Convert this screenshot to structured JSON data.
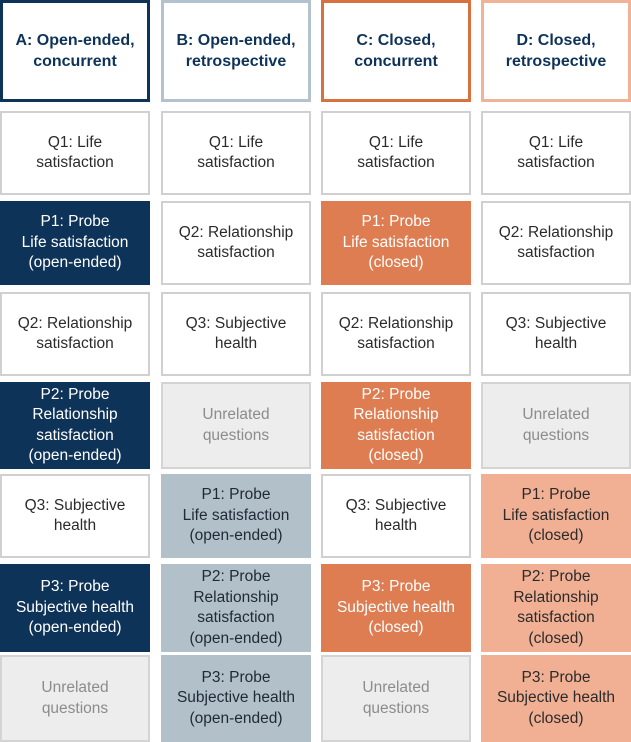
{
  "columns": [
    {
      "key": "a",
      "header": "A: Open-ended,\nconcurrent",
      "cells": [
        {
          "kind": "question",
          "text": "Q1: Life\nsatisfaction"
        },
        {
          "kind": "probe",
          "text": "P1: Probe\nLife satisfaction\n(open-ended)"
        },
        {
          "kind": "question",
          "text": "Q2: Relationship\nsatisfaction"
        },
        {
          "kind": "probe",
          "text": "P2: Probe\nRelationship\nsatisfaction\n(open-ended)"
        },
        {
          "kind": "question",
          "text": "Q3: Subjective\nhealth"
        },
        {
          "kind": "probe",
          "text": "P3: Probe\nSubjective health\n(open-ended)"
        },
        {
          "kind": "unrelated",
          "text": "Unrelated\nquestions"
        }
      ]
    },
    {
      "key": "b",
      "header": "B: Open-ended,\nretrospective",
      "cells": [
        {
          "kind": "question",
          "text": "Q1: Life\nsatisfaction"
        },
        {
          "kind": "question",
          "text": "Q2: Relationship\nsatisfaction"
        },
        {
          "kind": "question",
          "text": "Q3: Subjective\nhealth"
        },
        {
          "kind": "unrelated",
          "text": "Unrelated\nquestions"
        },
        {
          "kind": "probe",
          "text": "P1: Probe\nLife satisfaction\n(open-ended)"
        },
        {
          "kind": "probe",
          "text": "P2: Probe\nRelationship\nsatisfaction\n(open-ended)"
        },
        {
          "kind": "probe",
          "text": "P3: Probe\nSubjective health\n(open-ended)"
        }
      ]
    },
    {
      "key": "c",
      "header": "C: Closed,\nconcurrent",
      "cells": [
        {
          "kind": "question",
          "text": "Q1: Life\nsatisfaction"
        },
        {
          "kind": "probe",
          "text": "P1: Probe\nLife satisfaction\n(closed)"
        },
        {
          "kind": "question",
          "text": "Q2: Relationship\nsatisfaction"
        },
        {
          "kind": "probe",
          "text": "P2: Probe\nRelationship\nsatisfaction\n(closed)"
        },
        {
          "kind": "question",
          "text": "Q3: Subjective\nhealth"
        },
        {
          "kind": "probe",
          "text": "P3: Probe\nSubjective health\n(closed)"
        },
        {
          "kind": "unrelated",
          "text": "Unrelated\nquestions"
        }
      ]
    },
    {
      "key": "d",
      "header": "D: Closed,\nretrospective",
      "cells": [
        {
          "kind": "question",
          "text": "Q1: Life\nsatisfaction"
        },
        {
          "kind": "question",
          "text": "Q2: Relationship\nsatisfaction"
        },
        {
          "kind": "question",
          "text": "Q3: Subjective\nhealth"
        },
        {
          "kind": "unrelated",
          "text": "Unrelated\nquestions"
        },
        {
          "kind": "probe",
          "text": "P1: Probe\nLife satisfaction\n(closed)"
        },
        {
          "kind": "probe",
          "text": "P2: Probe\nRelationship\nsatisfaction\n(closed)"
        },
        {
          "kind": "probe",
          "text": "P3: Probe\nSubjective health\n(closed)"
        }
      ]
    }
  ]
}
